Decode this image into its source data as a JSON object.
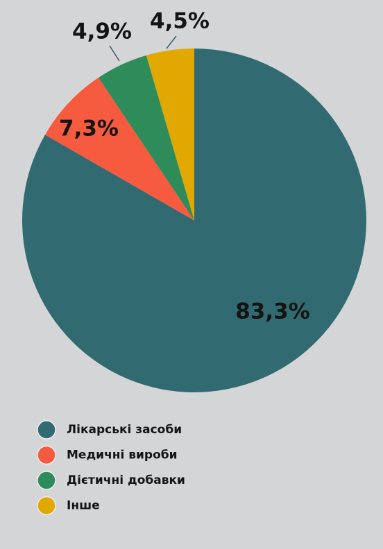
{
  "chart_data": {
    "type": "pie",
    "categories": [
      "Лікарські засоби",
      "Медичні вироби",
      "Дієтичні добавки",
      "Інше"
    ],
    "values": [
      83.3,
      7.3,
      4.9,
      4.5
    ],
    "value_labels": [
      "83,3%",
      "7,3%",
      "4,9%",
      "4,5%"
    ],
    "colors": [
      "#316b71",
      "#f65a3f",
      "#2e8c5b",
      "#e0a800"
    ],
    "legend": "bottom"
  }
}
